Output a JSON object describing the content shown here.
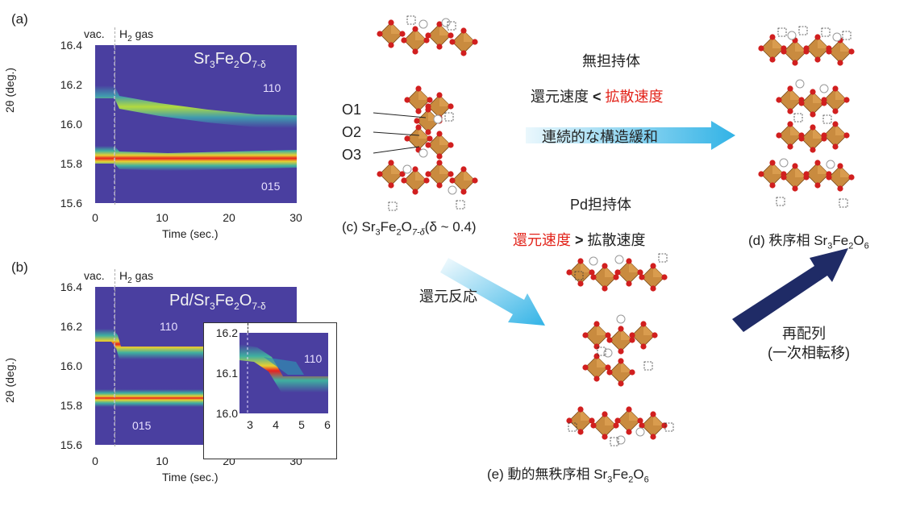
{
  "panel_a": {
    "letter": "(a)",
    "vac_label": "vac.",
    "gas_label": "H",
    "gas_sub": "2",
    "gas_suffix": " gas",
    "compound": {
      "pre": "Sr",
      "s1": "3",
      "mid": "Fe",
      "s2": "2",
      "o": "O",
      "s3": "7-δ"
    },
    "hkl_110": "110",
    "hkl_015": "015",
    "y_ticks": [
      "16.4",
      "16.2",
      "16.0",
      "15.8",
      "15.6"
    ],
    "x_ticks": [
      "0",
      "10",
      "20",
      "30"
    ],
    "ylabel": "2θ  (deg.)",
    "xlabel": "Time (sec.)"
  },
  "panel_b": {
    "letter": "(b)",
    "vac_label": "vac.",
    "gas_label": "H",
    "gas_sub": "2",
    "gas_suffix": " gas",
    "compound": {
      "pre": "Pd/Sr",
      "s1": "3",
      "mid": "Fe",
      "s2": "2",
      "o": "O",
      "s3": "7-δ"
    },
    "hkl_110": "110",
    "hkl_015": "015",
    "y_ticks": [
      "16.4",
      "16.2",
      "16.0",
      "15.8",
      "15.6"
    ],
    "x_ticks": [
      "0",
      "10",
      "20",
      "30"
    ],
    "ylabel": "2θ  (deg.)",
    "xlabel": "Time (sec.)",
    "inset": {
      "y_ticks": [
        "16.2",
        "16.1",
        "16.0"
      ],
      "x_ticks": [
        "3",
        "4",
        "5",
        "6"
      ],
      "hkl": "110"
    }
  },
  "panel_c": {
    "o1": "O1",
    "o2": "O2",
    "o3": "O3",
    "caption": {
      "pre": "(c) Sr",
      "s1": "3",
      "mid": "Fe",
      "s2": "2",
      "o": "O",
      "s3": "7-δ",
      "post": "(δ ~ 0.4)"
    }
  },
  "panel_d": {
    "caption": {
      "pre": "(d) 秩序相 Sr",
      "s1": "3",
      "mid": "Fe",
      "s2": "2",
      "o": "O",
      "s3": "6"
    }
  },
  "panel_e": {
    "caption": {
      "pre": "(e) 動的無秩序相 Sr",
      "s1": "3",
      "mid": "Fe",
      "s2": "2",
      "o": "O",
      "s3": "6"
    }
  },
  "annotations": {
    "unsupported_title": "無担持体",
    "unsupported_rel": {
      "left": "還元速度",
      "op": " < ",
      "right": "拡散速度"
    },
    "continuous": "連続的な構造緩和",
    "pd_title": "Pd担持体",
    "pd_rel": {
      "left": "還元速度",
      "op": " > ",
      "right": "拡散速度"
    },
    "reduction": "還元反応",
    "rearrange_1": "再配列",
    "rearrange_2": "(一次相転移)"
  },
  "colors": {
    "map_bg": "#4a3fa0",
    "octahedron": "#c98b3f",
    "oxygen": "#d11f1f",
    "arrow_cyan": "#32b3e6",
    "arrow_navy": "#1f2b66",
    "text_red": "#e2231a"
  }
}
